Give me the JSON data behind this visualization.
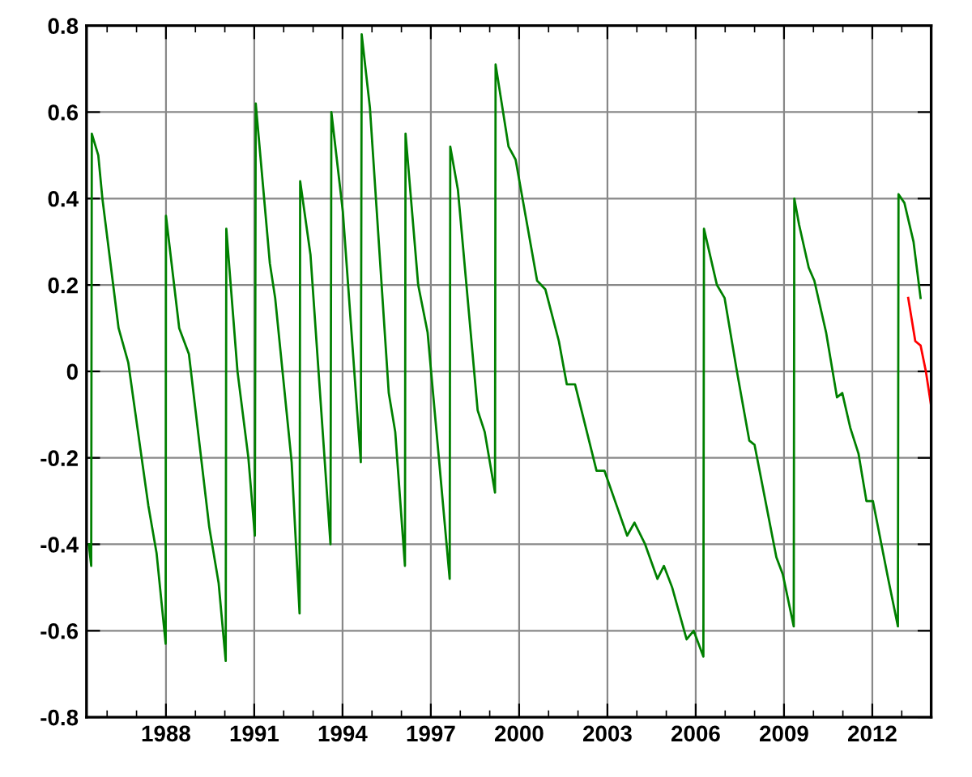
{
  "chart_data": {
    "type": "line",
    "xlim": [
      1985.3,
      2014
    ],
    "ylim": [
      -0.8,
      0.8
    ],
    "xticks": [
      1988,
      1991,
      1994,
      1997,
      2000,
      2003,
      2006,
      2009,
      2012
    ],
    "yticks": [
      -0.8,
      -0.6,
      -0.4,
      -0.2,
      0,
      0.2,
      0.4,
      0.6,
      0.8
    ],
    "grid": true,
    "marker": "none",
    "line_style": "solid",
    "legend": false,
    "series": [
      {
        "color": "#008000",
        "x": [
          1985.38,
          1985.46,
          1985.48,
          1985.7,
          1985.84,
          1986.39,
          1986.72,
          1987.4,
          1987.68,
          1987.99,
          1988.0,
          1988.45,
          1988.78,
          1989.47,
          1989.79,
          1990.03,
          1990.05,
          1990.43,
          1990.8,
          1991.02,
          1991.05,
          1991.53,
          1991.71,
          1992.27,
          1992.54,
          1992.56,
          1992.91,
          1993.59,
          1993.62,
          1994.01,
          1994.62,
          1994.65,
          1994.93,
          1995.57,
          1995.79,
          1996.12,
          1996.14,
          1996.57,
          1996.89,
          1997.64,
          1997.66,
          1997.92,
          1998.59,
          1998.83,
          1999.18,
          1999.2,
          1999.64,
          1999.88,
          2000.61,
          2000.89,
          2001.35,
          2001.62,
          2001.9,
          2002.63,
          2002.9,
          2003.67,
          2003.92,
          2004.28,
          2004.7,
          2004.92,
          2005.2,
          2005.69,
          2005.93,
          2006.26,
          2006.28,
          2006.72,
          2006.98,
          2007.4,
          2007.82,
          2008.0,
          2008.74,
          2008.96,
          2009.33,
          2009.35,
          2009.51,
          2009.84,
          2010.03,
          2010.43,
          2010.8,
          2010.98,
          2011.25,
          2011.53,
          2011.8,
          2012.02,
          2012.54,
          2012.87,
          2012.89,
          2013.09,
          2013.4,
          2013.64
        ],
        "values": [
          -0.4,
          -0.45,
          0.55,
          0.5,
          0.4,
          0.1,
          0.02,
          -0.31,
          -0.42,
          -0.63,
          0.36,
          0.1,
          0.04,
          -0.36,
          -0.49,
          -0.67,
          0.33,
          0.0,
          -0.2,
          -0.38,
          0.62,
          0.25,
          0.17,
          -0.21,
          -0.56,
          0.44,
          0.27,
          -0.4,
          0.6,
          0.37,
          -0.21,
          0.78,
          0.61,
          -0.05,
          -0.14,
          -0.45,
          0.55,
          0.2,
          0.09,
          -0.48,
          0.52,
          0.42,
          -0.09,
          -0.14,
          -0.28,
          0.71,
          0.52,
          0.49,
          0.21,
          0.19,
          0.07,
          -0.03,
          -0.03,
          -0.23,
          -0.23,
          -0.38,
          -0.35,
          -0.4,
          -0.48,
          -0.45,
          -0.5,
          -0.62,
          -0.6,
          -0.66,
          0.33,
          0.2,
          0.17,
          0.0,
          -0.16,
          -0.17,
          -0.43,
          -0.47,
          -0.59,
          0.4,
          0.34,
          0.24,
          0.21,
          0.09,
          -0.06,
          -0.05,
          -0.13,
          -0.19,
          -0.3,
          -0.3,
          -0.48,
          -0.59,
          0.41,
          0.39,
          0.3,
          0.17
        ]
      },
      {
        "color": "#ff0000",
        "x": [
          2013.22,
          2013.46,
          2013.64,
          2013.82,
          2014.0
        ],
        "values": [
          0.17,
          0.07,
          0.06,
          0.0,
          -0.08
        ]
      }
    ]
  }
}
